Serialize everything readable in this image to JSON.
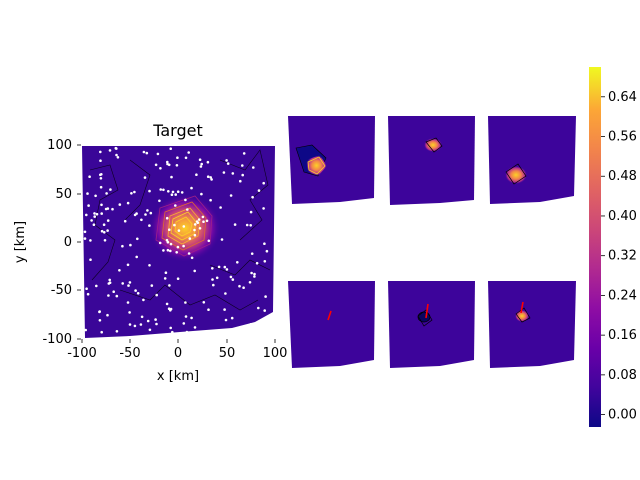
{
  "chart_data": [
    {
      "type": "heatmap",
      "title": "Target",
      "xlabel": "x [km]",
      "ylabel": "y [km]",
      "xlim": [
        -100,
        100
      ],
      "ylim": [
        -100,
        100
      ],
      "xticks": [
        -100,
        -50,
        0,
        50,
        100
      ],
      "yticks": [
        -100,
        -50,
        0,
        50,
        100
      ],
      "peak": {
        "x": 8,
        "y": 15,
        "value": 0.68
      },
      "colormap": "plasma"
    },
    {
      "type": "heatmap",
      "panel": "top-1",
      "feature": "yellow/orange contoured blob near top-left"
    },
    {
      "type": "heatmap",
      "panel": "top-2",
      "feature": "small contoured blob near top-center"
    },
    {
      "type": "heatmap",
      "panel": "top-3",
      "feature": "contoured blob left of center"
    },
    {
      "type": "heatmap",
      "panel": "bottom-1",
      "feature": "short red line segment"
    },
    {
      "type": "heatmap",
      "panel": "bottom-2",
      "feature": "dark contour with red line segment"
    },
    {
      "type": "heatmap",
      "panel": "bottom-3",
      "feature": "small orange blob with red line segment"
    }
  ],
  "colorbar": {
    "ticks": [
      "0.00",
      "0.08",
      "0.16",
      "0.24",
      "0.32",
      "0.40",
      "0.48",
      "0.56",
      "0.64"
    ],
    "vmin": -0.025,
    "vmax": 0.7
  },
  "colors": {
    "background_dark": "#2a0590",
    "background_mid": "#3f049b",
    "peak": "#fcd225",
    "points": "#ffffff",
    "segment": "#ff0000"
  }
}
